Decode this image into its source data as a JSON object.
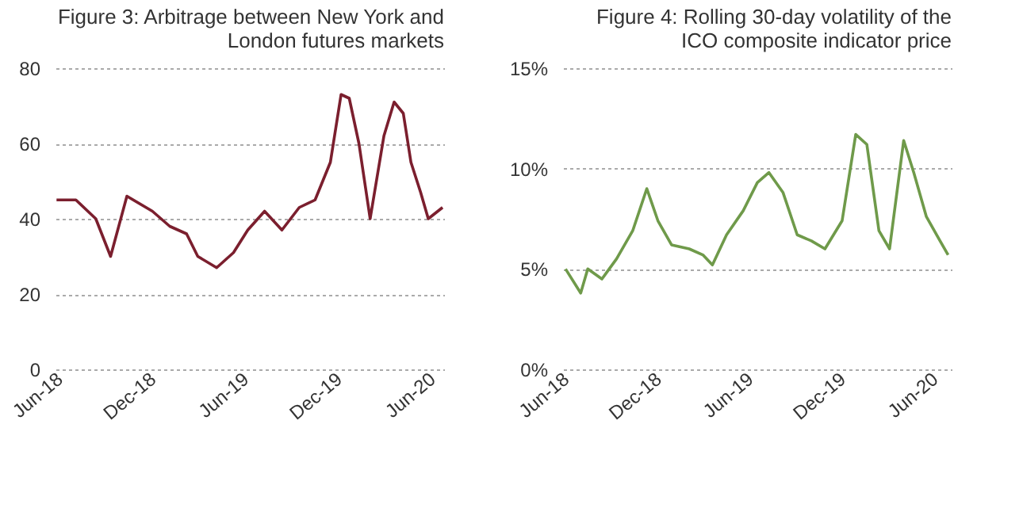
{
  "chart_data": [
    {
      "type": "line",
      "title": "Figure 3:  Arbitrage between New York and\nLondon futures markets",
      "x": [
        "2018-05-27",
        "2018-07-04",
        "2018-08-12",
        "2018-09-10",
        "2018-10-12",
        "2018-12-01",
        "2019-01-04",
        "2019-02-06",
        "2019-02-28",
        "2019-04-06",
        "2019-05-09",
        "2019-06-06",
        "2019-07-09",
        "2019-08-12",
        "2019-09-15",
        "2019-10-16",
        "2019-11-15",
        "2019-12-06",
        "2019-12-22",
        "2020-01-10",
        "2020-02-01",
        "2020-02-28",
        "2020-03-19",
        "2020-04-06",
        "2020-04-21",
        "2020-05-10",
        "2020-05-25",
        "2020-06-22"
      ],
      "series": [
        {
          "color": "#7b1f2e",
          "values": [
            45,
            45,
            40,
            30,
            46,
            42,
            38,
            36,
            30,
            27,
            31,
            37,
            42,
            37,
            43,
            45,
            55,
            73,
            72,
            60,
            40,
            62,
            71,
            68,
            55,
            47,
            40,
            43
          ]
        }
      ],
      "xlim": [
        "2018-05-25",
        "2020-06-25"
      ],
      "xticks": [
        {
          "value": "2018-06-01",
          "label": "Jun-18"
        },
        {
          "value": "2018-12-01",
          "label": "Dec-18"
        },
        {
          "value": "2019-06-01",
          "label": "Jun-19"
        },
        {
          "value": "2019-12-01",
          "label": "Dec-19"
        },
        {
          "value": "2020-06-01",
          "label": "Jun-20"
        }
      ],
      "ylim": [
        0,
        80
      ],
      "yticks": [
        0,
        20,
        40,
        60,
        80
      ],
      "grid": "y"
    },
    {
      "type": "line",
      "title": "Figure 4:  Rolling 30-day volatility of the\nICO  composite indicator price",
      "x": [
        "2018-06-01",
        "2018-07-01",
        "2018-07-15",
        "2018-08-12",
        "2018-09-10",
        "2018-10-12",
        "2018-11-09",
        "2018-12-01",
        "2018-12-28",
        "2019-02-01",
        "2019-02-28",
        "2019-03-19",
        "2019-04-16",
        "2019-05-19",
        "2019-06-16",
        "2019-07-09",
        "2019-08-06",
        "2019-09-03",
        "2019-10-01",
        "2019-10-28",
        "2019-12-01",
        "2019-12-28",
        "2020-01-19",
        "2020-02-12",
        "2020-03-04",
        "2020-04-01",
        "2020-04-21",
        "2020-05-16",
        "2020-06-12",
        "2020-06-28"
      ],
      "series": [
        {
          "color": "#6f9a4a",
          "values": [
            5.0,
            3.8,
            5.0,
            4.5,
            5.5,
            6.9,
            9.0,
            7.4,
            6.2,
            6.0,
            5.7,
            5.2,
            6.7,
            7.9,
            9.3,
            9.8,
            8.8,
            6.7,
            6.4,
            6.0,
            7.4,
            11.7,
            11.2,
            6.9,
            6.0,
            11.4,
            9.8,
            7.6,
            6.4,
            5.7
          ]
        }
      ],
      "xlim": [
        "2018-05-27",
        "2020-07-05"
      ],
      "xticks": [
        {
          "value": "2018-06-01",
          "label": "Jun-18"
        },
        {
          "value": "2018-12-01",
          "label": "Dec-18"
        },
        {
          "value": "2019-06-01",
          "label": "Jun-19"
        },
        {
          "value": "2019-12-01",
          "label": "Dec-19"
        },
        {
          "value": "2020-06-01",
          "label": "Jun-20"
        }
      ],
      "ylim": [
        0,
        15
      ],
      "yticks": [
        {
          "value": 0,
          "label": "0%"
        },
        {
          "value": 5,
          "label": "5%"
        },
        {
          "value": 10,
          "label": "10%"
        },
        {
          "value": 15,
          "label": "15%"
        }
      ],
      "grid": "y"
    }
  ]
}
